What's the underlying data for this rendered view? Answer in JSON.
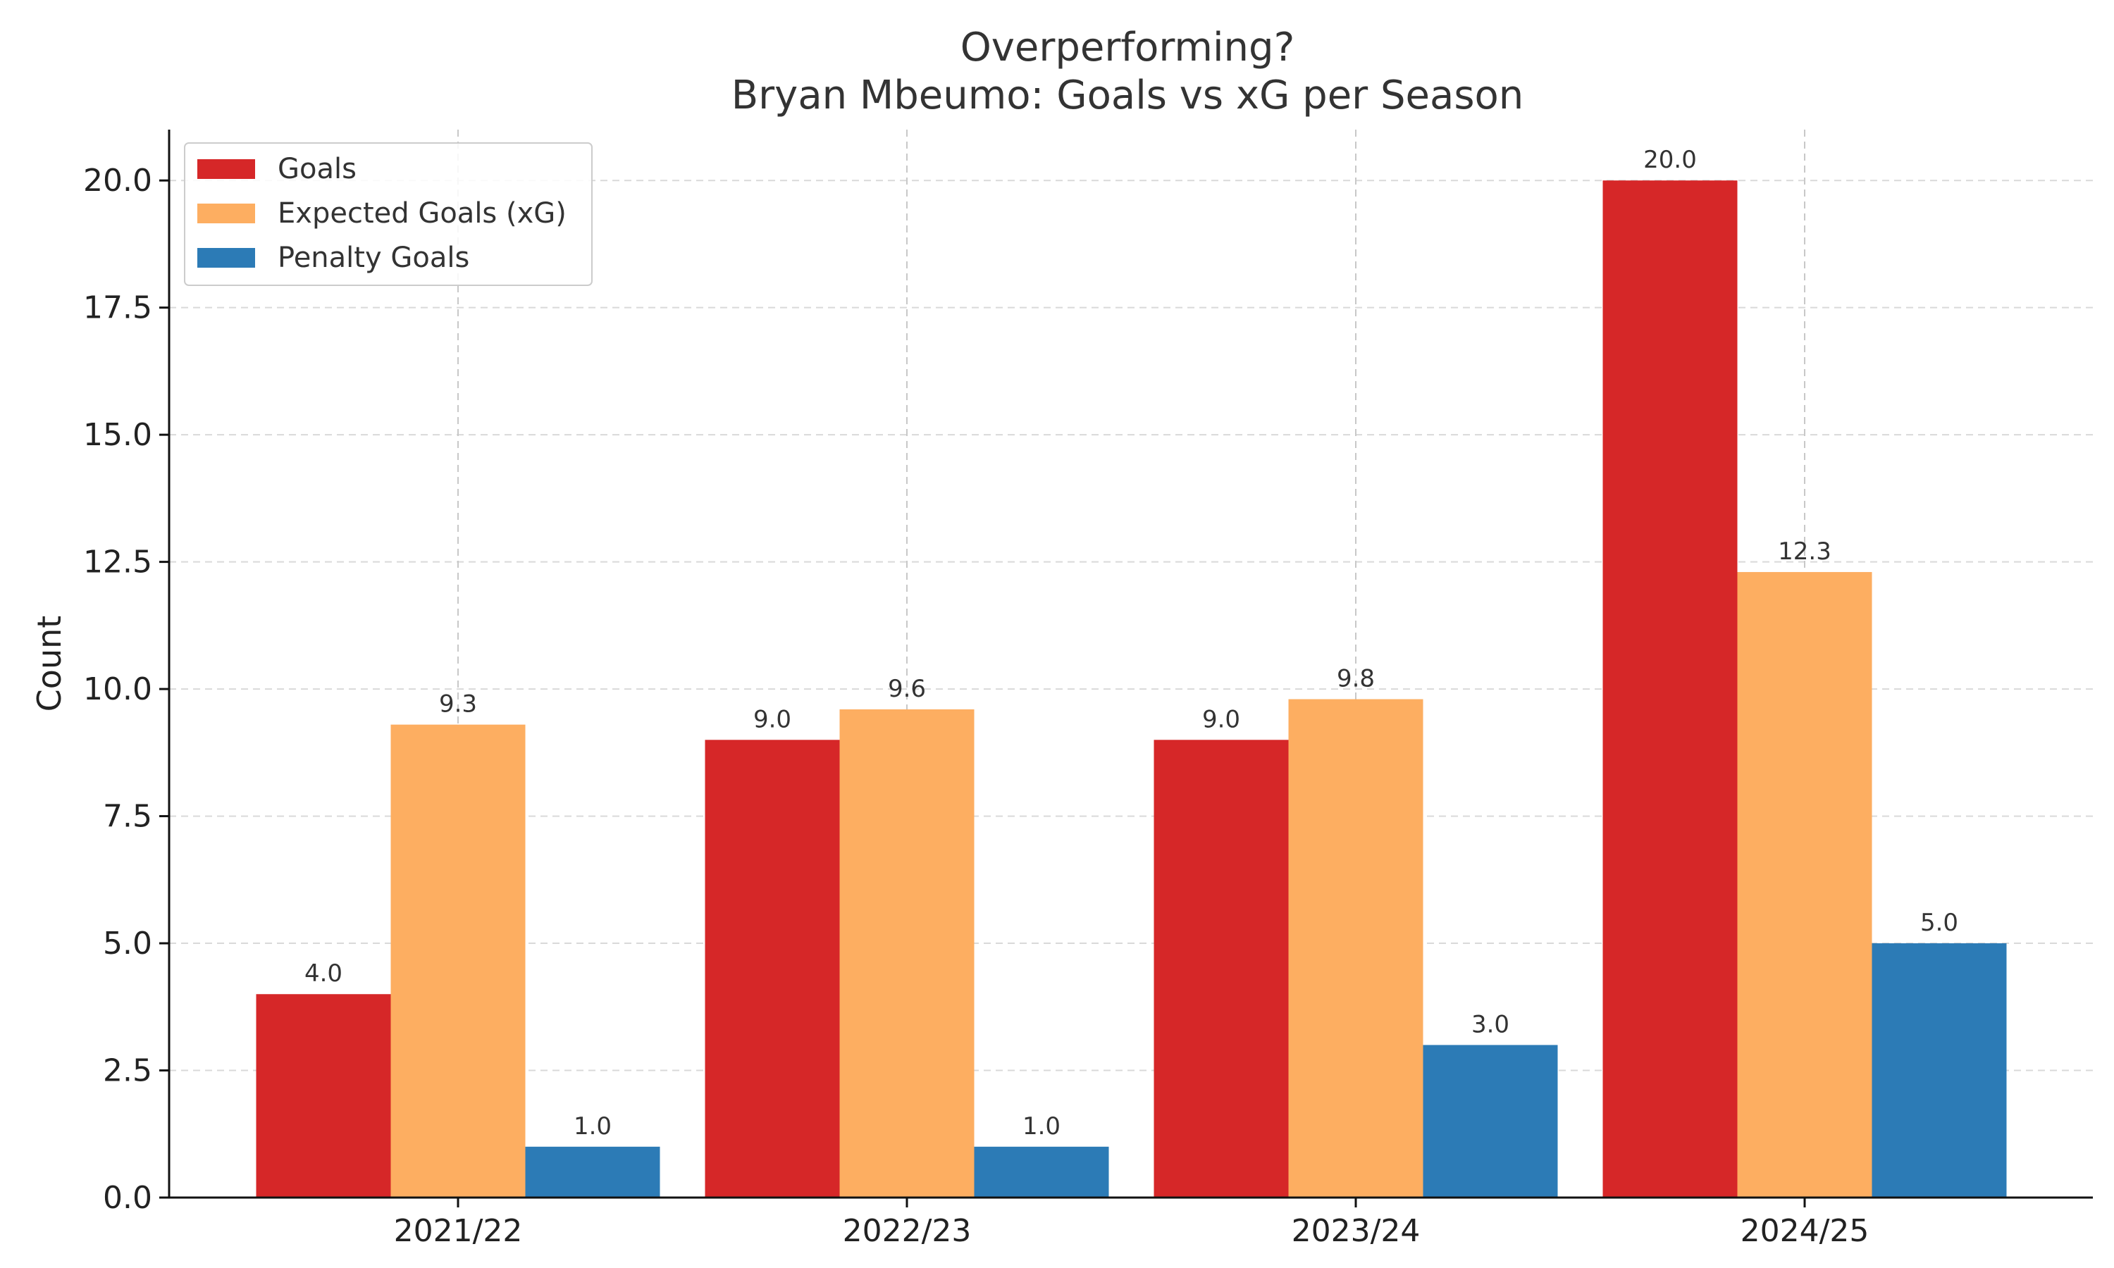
{
  "chart_data": {
    "type": "bar",
    "title": "Overperforming?",
    "subtitle": "Bryan Mbeumo: Goals vs xG per Season",
    "xlabel": "",
    "ylabel": "Count",
    "ylim": [
      0,
      21
    ],
    "yticks": [
      0.0,
      2.5,
      5.0,
      7.5,
      10.0,
      12.5,
      15.0,
      17.5,
      20.0
    ],
    "ytick_labels": [
      "0.0",
      "2.5",
      "5.0",
      "7.5",
      "10.0",
      "12.5",
      "15.0",
      "17.5",
      "20.0"
    ],
    "categories": [
      "2021/22",
      "2022/23",
      "2023/24",
      "2024/25"
    ],
    "series": [
      {
        "name": "Goals",
        "color": "#d62728",
        "values": [
          4.0,
          9.0,
          9.0,
          20.0
        ],
        "labels": [
          "4.0",
          "9.0",
          "9.0",
          "20.0"
        ]
      },
      {
        "name": "Expected Goals (xG)",
        "color": "#fdae61",
        "values": [
          9.3,
          9.6,
          9.8,
          12.3
        ],
        "labels": [
          "9.3",
          "9.6",
          "9.8",
          "12.3"
        ]
      },
      {
        "name": "Penalty Goals",
        "color": "#2c7bb6",
        "values": [
          1.0,
          1.0,
          3.0,
          5.0
        ],
        "labels": [
          "1.0",
          "1.0",
          "3.0",
          "5.0"
        ]
      }
    ],
    "grid": true,
    "legend_position": "top-left"
  }
}
